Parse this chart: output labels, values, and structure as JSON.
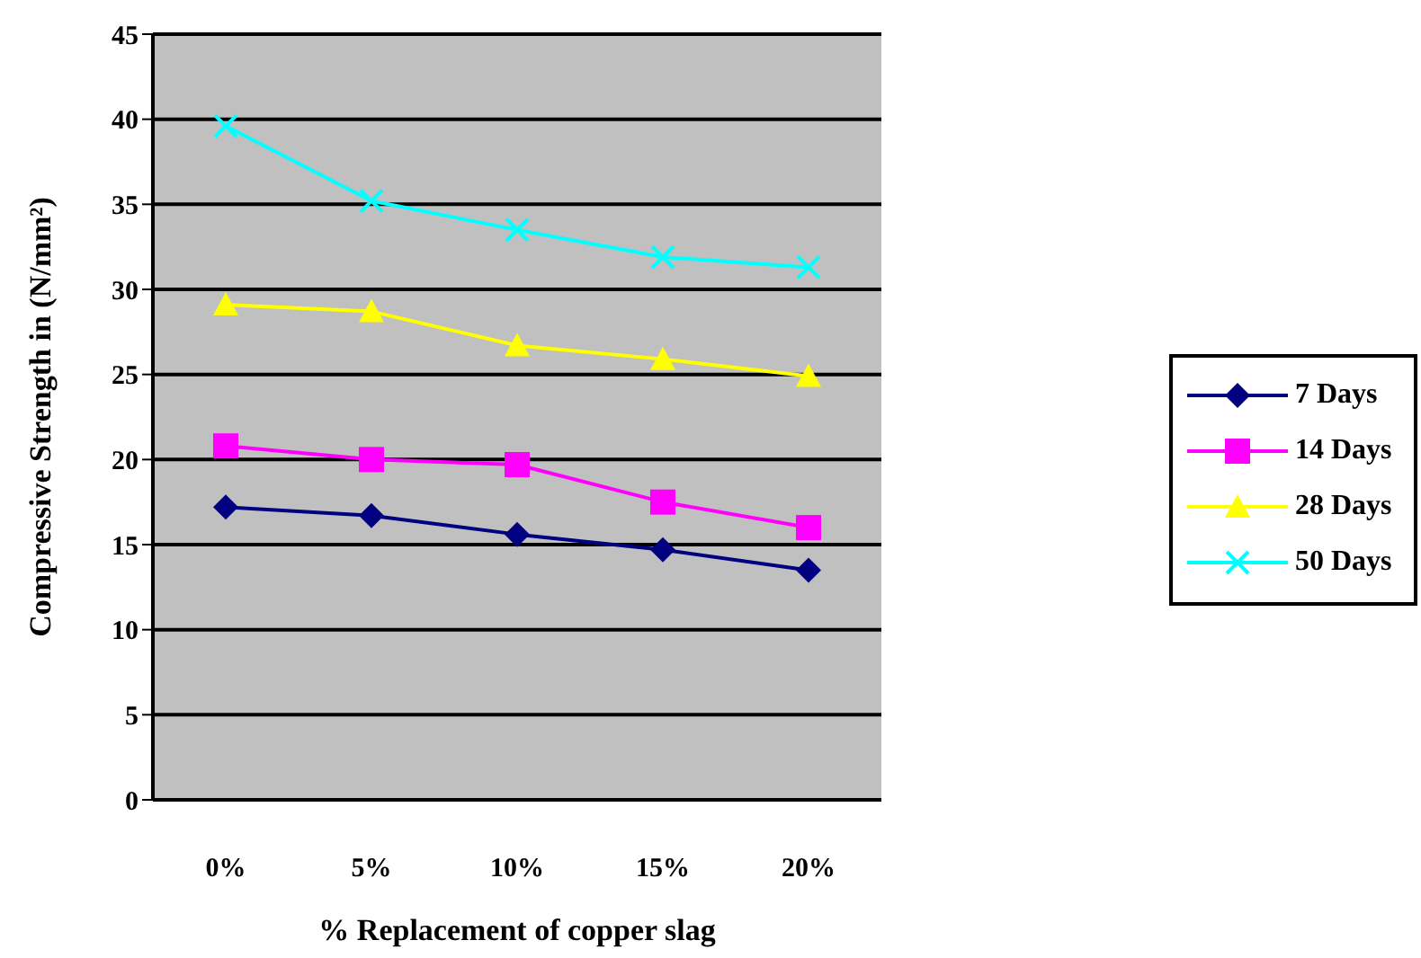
{
  "chart_data": {
    "type": "line",
    "xlabel": "% Replacement of copper slag",
    "ylabel": "Compressive Strength in (N/mm²)",
    "categories": [
      "0%",
      "5%",
      "10%",
      "15%",
      "20%"
    ],
    "series": [
      {
        "name": "7 Days",
        "color": "#000080",
        "marker": "diamond",
        "values": [
          17.2,
          16.7,
          15.6,
          14.7,
          13.5
        ]
      },
      {
        "name": "14 Days",
        "color": "#ff00ff",
        "marker": "square",
        "values": [
          20.8,
          20.0,
          19.7,
          17.5,
          16.0
        ]
      },
      {
        "name": "28 Days",
        "color": "#ffff00",
        "marker": "triangle",
        "values": [
          29.1,
          28.7,
          26.7,
          25.9,
          24.9
        ]
      },
      {
        "name": "50 Days",
        "color": "#00ffff",
        "marker": "cross",
        "values": [
          39.6,
          35.2,
          33.5,
          31.9,
          31.3
        ]
      }
    ],
    "ylim": [
      0,
      45
    ],
    "yticks": [
      0,
      5,
      10,
      15,
      20,
      25,
      30,
      35,
      40,
      45
    ],
    "grid": "y",
    "legend": "right"
  }
}
